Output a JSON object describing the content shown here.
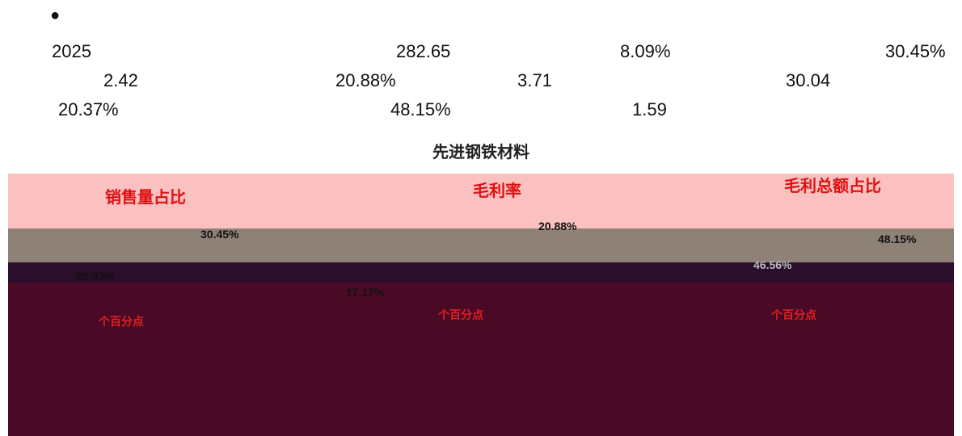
{
  "bullet": "●",
  "lines": [
    [
      "2025",
      "282.65",
      "8.09%",
      "30.45%"
    ],
    [
      "2.42",
      "20.88%",
      "3.71",
      "30.04"
    ],
    [
      "20.37%",
      "48.15%",
      "1.59"
    ]
  ],
  "figure": {
    "title": "先进钢铁材料",
    "panels": [
      {
        "label": "销售量占比",
        "values": [
          "30.45%",
          "28.03%"
        ],
        "note": "个百分点"
      },
      {
        "label": "毛利率",
        "values": [
          "20.88%",
          "17.17%"
        ],
        "note": "个百分点"
      },
      {
        "label": "毛利总额占比",
        "values": [
          "48.15%",
          "46.56%"
        ],
        "note": "个百分点"
      }
    ]
  }
}
